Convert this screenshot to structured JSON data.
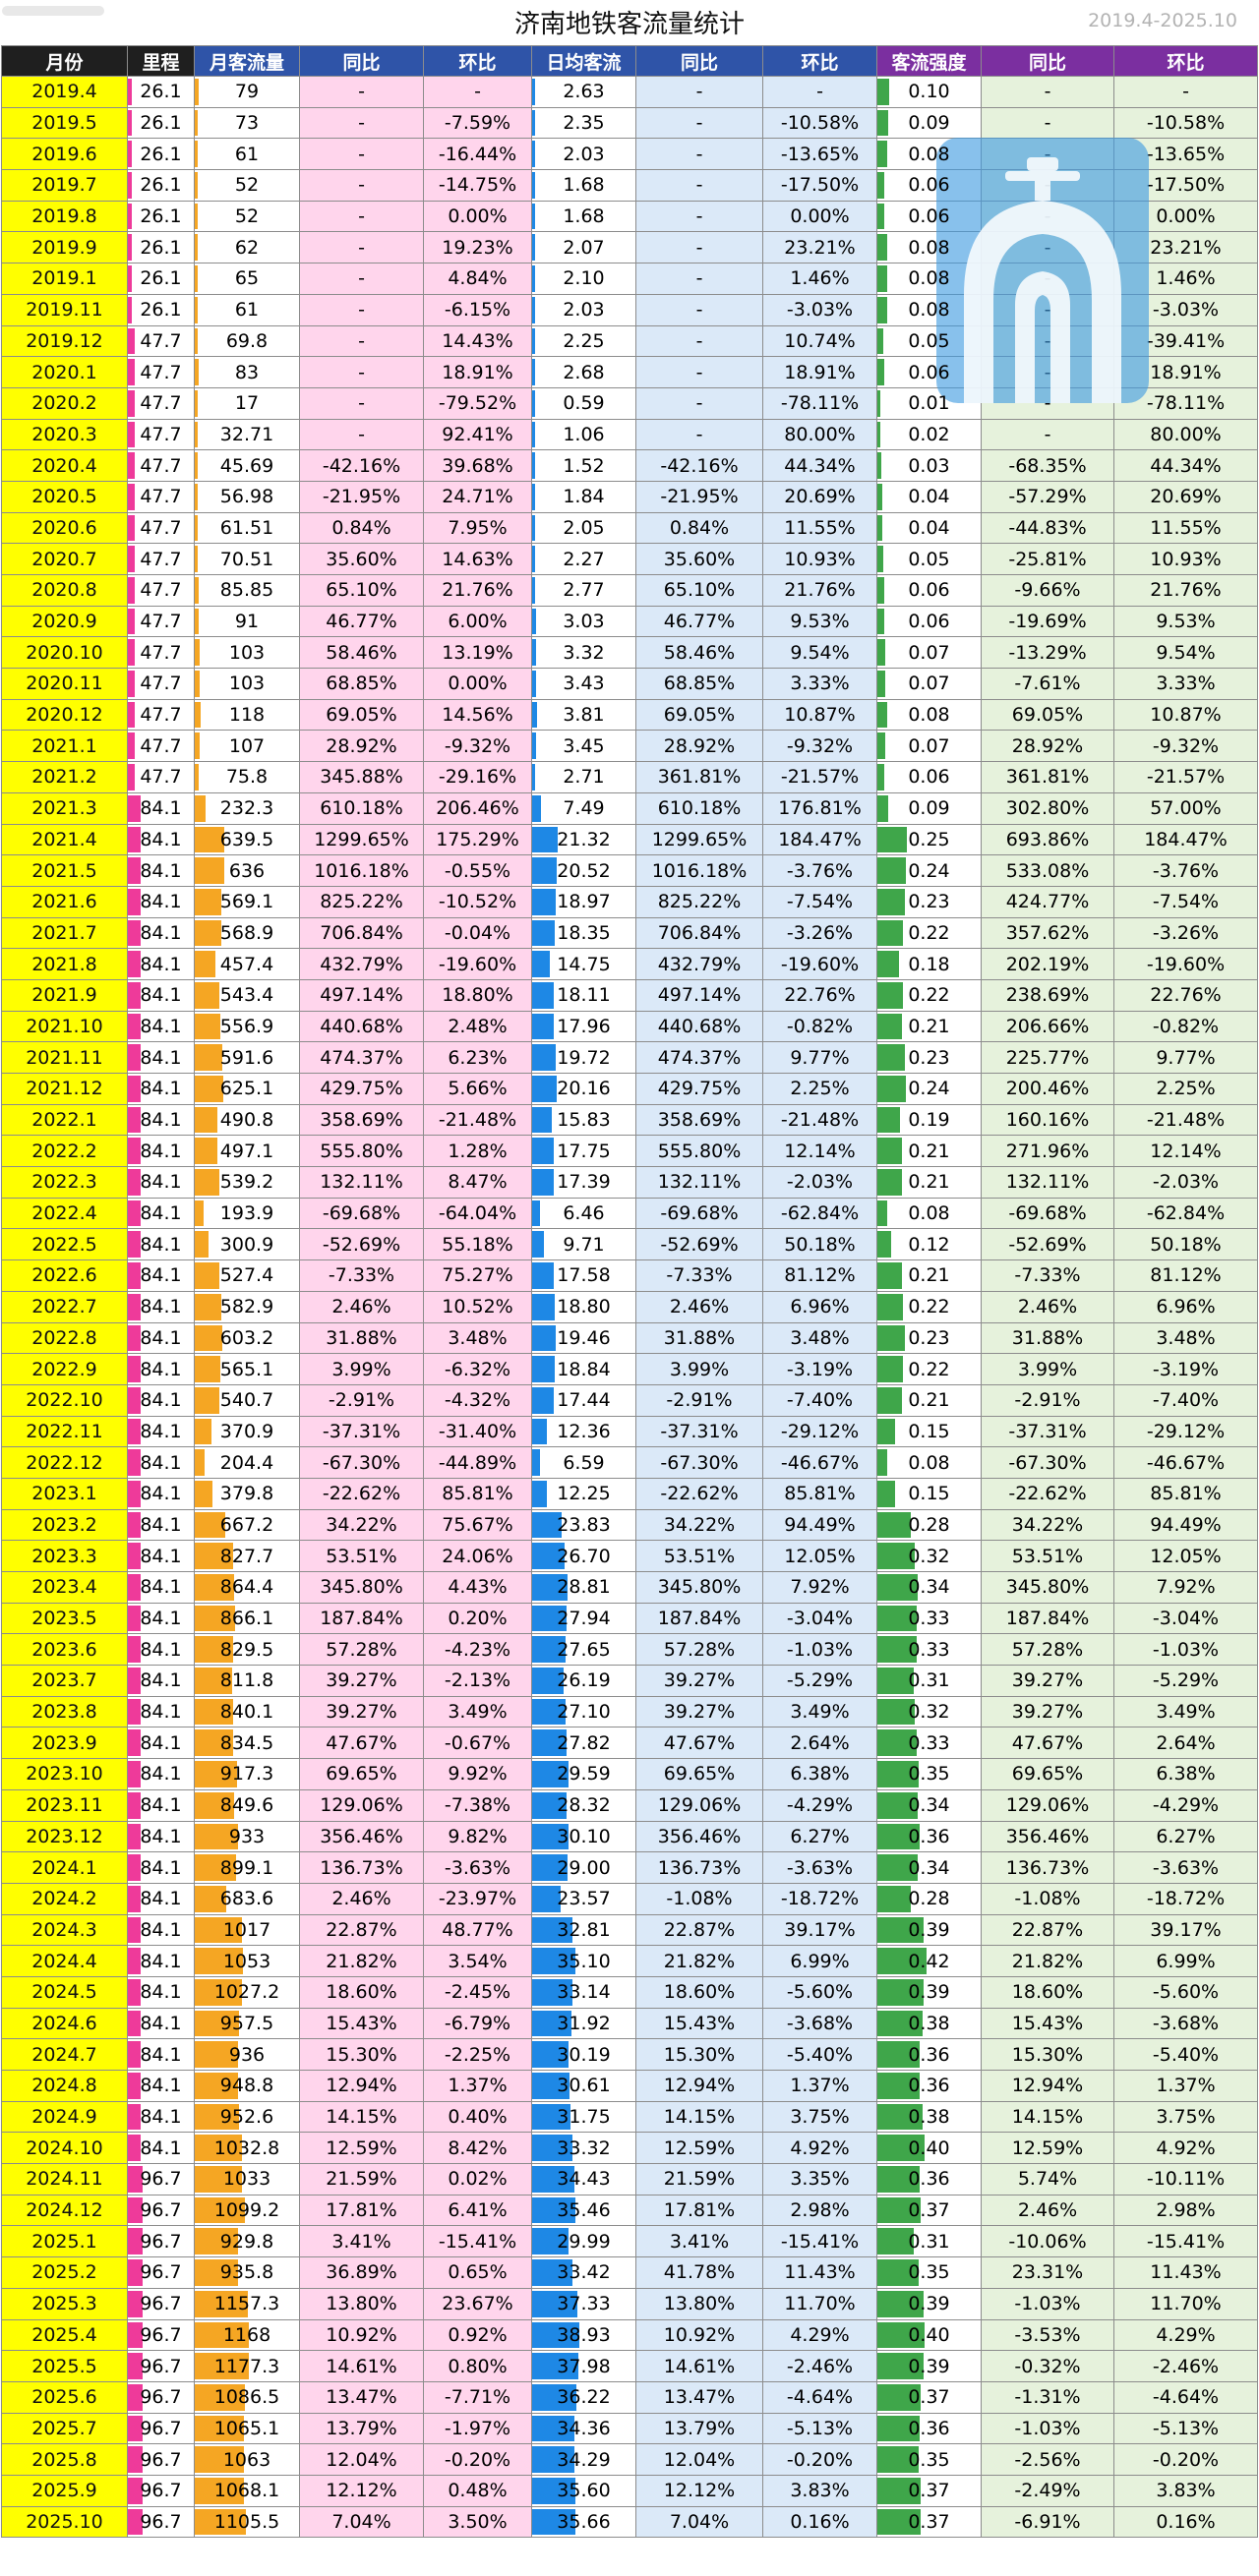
{
  "page": {
    "title": "济南地铁客流量统计",
    "range": "2019.4-2025.10"
  },
  "colors": {
    "yellow": "#ffff00",
    "pink": "#ee3a9a",
    "orange": "#f5a623",
    "blue": "#1e88e5",
    "green": "#3fa64a",
    "hdr_dark": "#1f1f1f",
    "hdr_blue": "#2f54a8",
    "hdr_purple": "#7b2fa0"
  },
  "headers": [
    "月份",
    "里程",
    "月客流量",
    "同比",
    "环比",
    "日均客流",
    "同比",
    "环比",
    "客流强度",
    "同比",
    "环比"
  ],
  "icons": {
    "logo": "jinan-metro-logo-icon",
    "watermark": "blurred-watermark"
  },
  "rows": [
    [
      "2019.4",
      "26.1",
      "79",
      "-",
      "-",
      "2.63",
      "-",
      "-",
      "0.10",
      "-",
      "-"
    ],
    [
      "2019.5",
      "26.1",
      "73",
      "-",
      "-7.59%",
      "2.35",
      "-",
      "-10.58%",
      "0.09",
      "-",
      "-10.58%"
    ],
    [
      "2019.6",
      "26.1",
      "61",
      "-",
      "-16.44%",
      "2.03",
      "-",
      "-13.65%",
      "0.08",
      "-",
      "-13.65%"
    ],
    [
      "2019.7",
      "26.1",
      "52",
      "-",
      "-14.75%",
      "1.68",
      "-",
      "-17.50%",
      "0.06",
      "-",
      "-17.50%"
    ],
    [
      "2019.8",
      "26.1",
      "52",
      "-",
      "0.00%",
      "1.68",
      "-",
      "0.00%",
      "0.06",
      "-",
      "0.00%"
    ],
    [
      "2019.9",
      "26.1",
      "62",
      "-",
      "19.23%",
      "2.07",
      "-",
      "23.21%",
      "0.08",
      "-",
      "23.21%"
    ],
    [
      "2019.1",
      "26.1",
      "65",
      "-",
      "4.84%",
      "2.10",
      "-",
      "1.46%",
      "0.08",
      "-",
      "1.46%"
    ],
    [
      "2019.11",
      "26.1",
      "61",
      "-",
      "-6.15%",
      "2.03",
      "-",
      "-3.03%",
      "0.08",
      "-",
      "-3.03%"
    ],
    [
      "2019.12",
      "47.7",
      "69.8",
      "-",
      "14.43%",
      "2.25",
      "-",
      "10.74%",
      "0.05",
      "-",
      "-39.41%"
    ],
    [
      "2020.1",
      "47.7",
      "83",
      "-",
      "18.91%",
      "2.68",
      "-",
      "18.91%",
      "0.06",
      "-",
      "18.91%"
    ],
    [
      "2020.2",
      "47.7",
      "17",
      "-",
      "-79.52%",
      "0.59",
      "-",
      "-78.11%",
      "0.01",
      "-",
      "-78.11%"
    ],
    [
      "2020.3",
      "47.7",
      "32.71",
      "-",
      "92.41%",
      "1.06",
      "-",
      "80.00%",
      "0.02",
      "-",
      "80.00%"
    ],
    [
      "2020.4",
      "47.7",
      "45.69",
      "-42.16%",
      "39.68%",
      "1.52",
      "-42.16%",
      "44.34%",
      "0.03",
      "-68.35%",
      "44.34%"
    ],
    [
      "2020.5",
      "47.7",
      "56.98",
      "-21.95%",
      "24.71%",
      "1.84",
      "-21.95%",
      "20.69%",
      "0.04",
      "-57.29%",
      "20.69%"
    ],
    [
      "2020.6",
      "47.7",
      "61.51",
      "0.84%",
      "7.95%",
      "2.05",
      "0.84%",
      "11.55%",
      "0.04",
      "-44.83%",
      "11.55%"
    ],
    [
      "2020.7",
      "47.7",
      "70.51",
      "35.60%",
      "14.63%",
      "2.27",
      "35.60%",
      "10.93%",
      "0.05",
      "-25.81%",
      "10.93%"
    ],
    [
      "2020.8",
      "47.7",
      "85.85",
      "65.10%",
      "21.76%",
      "2.77",
      "65.10%",
      "21.76%",
      "0.06",
      "-9.66%",
      "21.76%"
    ],
    [
      "2020.9",
      "47.7",
      "91",
      "46.77%",
      "6.00%",
      "3.03",
      "46.77%",
      "9.53%",
      "0.06",
      "-19.69%",
      "9.53%"
    ],
    [
      "2020.10",
      "47.7",
      "103",
      "58.46%",
      "13.19%",
      "3.32",
      "58.46%",
      "9.54%",
      "0.07",
      "-13.29%",
      "9.54%"
    ],
    [
      "2020.11",
      "47.7",
      "103",
      "68.85%",
      "0.00%",
      "3.43",
      "68.85%",
      "3.33%",
      "0.07",
      "-7.61%",
      "3.33%"
    ],
    [
      "2020.12",
      "47.7",
      "118",
      "69.05%",
      "14.56%",
      "3.81",
      "69.05%",
      "10.87%",
      "0.08",
      "69.05%",
      "10.87%"
    ],
    [
      "2021.1",
      "47.7",
      "107",
      "28.92%",
      "-9.32%",
      "3.45",
      "28.92%",
      "-9.32%",
      "0.07",
      "28.92%",
      "-9.32%"
    ],
    [
      "2021.2",
      "47.7",
      "75.8",
      "345.88%",
      "-29.16%",
      "2.71",
      "361.81%",
      "-21.57%",
      "0.06",
      "361.81%",
      "-21.57%"
    ],
    [
      "2021.3",
      "84.1",
      "232.3",
      "610.18%",
      "206.46%",
      "7.49",
      "610.18%",
      "176.81%",
      "0.09",
      "302.80%",
      "57.00%"
    ],
    [
      "2021.4",
      "84.1",
      "639.5",
      "1299.65%",
      "175.29%",
      "21.32",
      "1299.65%",
      "184.47%",
      "0.25",
      "693.86%",
      "184.47%"
    ],
    [
      "2021.5",
      "84.1",
      "636",
      "1016.18%",
      "-0.55%",
      "20.52",
      "1016.18%",
      "-3.76%",
      "0.24",
      "533.08%",
      "-3.76%"
    ],
    [
      "2021.6",
      "84.1",
      "569.1",
      "825.22%",
      "-10.52%",
      "18.97",
      "825.22%",
      "-7.54%",
      "0.23",
      "424.77%",
      "-7.54%"
    ],
    [
      "2021.7",
      "84.1",
      "568.9",
      "706.84%",
      "-0.04%",
      "18.35",
      "706.84%",
      "-3.26%",
      "0.22",
      "357.62%",
      "-3.26%"
    ],
    [
      "2021.8",
      "84.1",
      "457.4",
      "432.79%",
      "-19.60%",
      "14.75",
      "432.79%",
      "-19.60%",
      "0.18",
      "202.19%",
      "-19.60%"
    ],
    [
      "2021.9",
      "84.1",
      "543.4",
      "497.14%",
      "18.80%",
      "18.11",
      "497.14%",
      "22.76%",
      "0.22",
      "238.69%",
      "22.76%"
    ],
    [
      "2021.10",
      "84.1",
      "556.9",
      "440.68%",
      "2.48%",
      "17.96",
      "440.68%",
      "-0.82%",
      "0.21",
      "206.66%",
      "-0.82%"
    ],
    [
      "2021.11",
      "84.1",
      "591.6",
      "474.37%",
      "6.23%",
      "19.72",
      "474.37%",
      "9.77%",
      "0.23",
      "225.77%",
      "9.77%"
    ],
    [
      "2021.12",
      "84.1",
      "625.1",
      "429.75%",
      "5.66%",
      "20.16",
      "429.75%",
      "2.25%",
      "0.24",
      "200.46%",
      "2.25%"
    ],
    [
      "2022.1",
      "84.1",
      "490.8",
      "358.69%",
      "-21.48%",
      "15.83",
      "358.69%",
      "-21.48%",
      "0.19",
      "160.16%",
      "-21.48%"
    ],
    [
      "2022.2",
      "84.1",
      "497.1",
      "555.80%",
      "1.28%",
      "17.75",
      "555.80%",
      "12.14%",
      "0.21",
      "271.96%",
      "12.14%"
    ],
    [
      "2022.3",
      "84.1",
      "539.2",
      "132.11%",
      "8.47%",
      "17.39",
      "132.11%",
      "-2.03%",
      "0.21",
      "132.11%",
      "-2.03%"
    ],
    [
      "2022.4",
      "84.1",
      "193.9",
      "-69.68%",
      "-64.04%",
      "6.46",
      "-69.68%",
      "-62.84%",
      "0.08",
      "-69.68%",
      "-62.84%"
    ],
    [
      "2022.5",
      "84.1",
      "300.9",
      "-52.69%",
      "55.18%",
      "9.71",
      "-52.69%",
      "50.18%",
      "0.12",
      "-52.69%",
      "50.18%"
    ],
    [
      "2022.6",
      "84.1",
      "527.4",
      "-7.33%",
      "75.27%",
      "17.58",
      "-7.33%",
      "81.12%",
      "0.21",
      "-7.33%",
      "81.12%"
    ],
    [
      "2022.7",
      "84.1",
      "582.9",
      "2.46%",
      "10.52%",
      "18.80",
      "2.46%",
      "6.96%",
      "0.22",
      "2.46%",
      "6.96%"
    ],
    [
      "2022.8",
      "84.1",
      "603.2",
      "31.88%",
      "3.48%",
      "19.46",
      "31.88%",
      "3.48%",
      "0.23",
      "31.88%",
      "3.48%"
    ],
    [
      "2022.9",
      "84.1",
      "565.1",
      "3.99%",
      "-6.32%",
      "18.84",
      "3.99%",
      "-3.19%",
      "0.22",
      "3.99%",
      "-3.19%"
    ],
    [
      "2022.10",
      "84.1",
      "540.7",
      "-2.91%",
      "-4.32%",
      "17.44",
      "-2.91%",
      "-7.40%",
      "0.21",
      "-2.91%",
      "-7.40%"
    ],
    [
      "2022.11",
      "84.1",
      "370.9",
      "-37.31%",
      "-31.40%",
      "12.36",
      "-37.31%",
      "-29.12%",
      "0.15",
      "-37.31%",
      "-29.12%"
    ],
    [
      "2022.12",
      "84.1",
      "204.4",
      "-67.30%",
      "-44.89%",
      "6.59",
      "-67.30%",
      "-46.67%",
      "0.08",
      "-67.30%",
      "-46.67%"
    ],
    [
      "2023.1",
      "84.1",
      "379.8",
      "-22.62%",
      "85.81%",
      "12.25",
      "-22.62%",
      "85.81%",
      "0.15",
      "-22.62%",
      "85.81%"
    ],
    [
      "2023.2",
      "84.1",
      "667.2",
      "34.22%",
      "75.67%",
      "23.83",
      "34.22%",
      "94.49%",
      "0.28",
      "34.22%",
      "94.49%"
    ],
    [
      "2023.3",
      "84.1",
      "827.7",
      "53.51%",
      "24.06%",
      "26.70",
      "53.51%",
      "12.05%",
      "0.32",
      "53.51%",
      "12.05%"
    ],
    [
      "2023.4",
      "84.1",
      "864.4",
      "345.80%",
      "4.43%",
      "28.81",
      "345.80%",
      "7.92%",
      "0.34",
      "345.80%",
      "7.92%"
    ],
    [
      "2023.5",
      "84.1",
      "866.1",
      "187.84%",
      "0.20%",
      "27.94",
      "187.84%",
      "-3.04%",
      "0.33",
      "187.84%",
      "-3.04%"
    ],
    [
      "2023.6",
      "84.1",
      "829.5",
      "57.28%",
      "-4.23%",
      "27.65",
      "57.28%",
      "-1.03%",
      "0.33",
      "57.28%",
      "-1.03%"
    ],
    [
      "2023.7",
      "84.1",
      "811.8",
      "39.27%",
      "-2.13%",
      "26.19",
      "39.27%",
      "-5.29%",
      "0.31",
      "39.27%",
      "-5.29%"
    ],
    [
      "2023.8",
      "84.1",
      "840.1",
      "39.27%",
      "3.49%",
      "27.10",
      "39.27%",
      "3.49%",
      "0.32",
      "39.27%",
      "3.49%"
    ],
    [
      "2023.9",
      "84.1",
      "834.5",
      "47.67%",
      "-0.67%",
      "27.82",
      "47.67%",
      "2.64%",
      "0.33",
      "47.67%",
      "2.64%"
    ],
    [
      "2023.10",
      "84.1",
      "917.3",
      "69.65%",
      "9.92%",
      "29.59",
      "69.65%",
      "6.38%",
      "0.35",
      "69.65%",
      "6.38%"
    ],
    [
      "2023.11",
      "84.1",
      "849.6",
      "129.06%",
      "-7.38%",
      "28.32",
      "129.06%",
      "-4.29%",
      "0.34",
      "129.06%",
      "-4.29%"
    ],
    [
      "2023.12",
      "84.1",
      "933",
      "356.46%",
      "9.82%",
      "30.10",
      "356.46%",
      "6.27%",
      "0.36",
      "356.46%",
      "6.27%"
    ],
    [
      "2024.1",
      "84.1",
      "899.1",
      "136.73%",
      "-3.63%",
      "29.00",
      "136.73%",
      "-3.63%",
      "0.34",
      "136.73%",
      "-3.63%"
    ],
    [
      "2024.2",
      "84.1",
      "683.6",
      "2.46%",
      "-23.97%",
      "23.57",
      "-1.08%",
      "-18.72%",
      "0.28",
      "-1.08%",
      "-18.72%"
    ],
    [
      "2024.3",
      "84.1",
      "1017",
      "22.87%",
      "48.77%",
      "32.81",
      "22.87%",
      "39.17%",
      "0.39",
      "22.87%",
      "39.17%"
    ],
    [
      "2024.4",
      "84.1",
      "1053",
      "21.82%",
      "3.54%",
      "35.10",
      "21.82%",
      "6.99%",
      "0.42",
      "21.82%",
      "6.99%"
    ],
    [
      "2024.5",
      "84.1",
      "1027.2",
      "18.60%",
      "-2.45%",
      "33.14",
      "18.60%",
      "-5.60%",
      "0.39",
      "18.60%",
      "-5.60%"
    ],
    [
      "2024.6",
      "84.1",
      "957.5",
      "15.43%",
      "-6.79%",
      "31.92",
      "15.43%",
      "-3.68%",
      "0.38",
      "15.43%",
      "-3.68%"
    ],
    [
      "2024.7",
      "84.1",
      "936",
      "15.30%",
      "-2.25%",
      "30.19",
      "15.30%",
      "-5.40%",
      "0.36",
      "15.30%",
      "-5.40%"
    ],
    [
      "2024.8",
      "84.1",
      "948.8",
      "12.94%",
      "1.37%",
      "30.61",
      "12.94%",
      "1.37%",
      "0.36",
      "12.94%",
      "1.37%"
    ],
    [
      "2024.9",
      "84.1",
      "952.6",
      "14.15%",
      "0.40%",
      "31.75",
      "14.15%",
      "3.75%",
      "0.38",
      "14.15%",
      "3.75%"
    ],
    [
      "2024.10",
      "84.1",
      "1032.8",
      "12.59%",
      "8.42%",
      "33.32",
      "12.59%",
      "4.92%",
      "0.40",
      "12.59%",
      "4.92%"
    ],
    [
      "2024.11",
      "96.7",
      "1033",
      "21.59%",
      "0.02%",
      "34.43",
      "21.59%",
      "3.35%",
      "0.36",
      "5.74%",
      "-10.11%"
    ],
    [
      "2024.12",
      "96.7",
      "1099.2",
      "17.81%",
      "6.41%",
      "35.46",
      "17.81%",
      "2.98%",
      "0.37",
      "2.46%",
      "2.98%"
    ],
    [
      "2025.1",
      "96.7",
      "929.8",
      "3.41%",
      "-15.41%",
      "29.99",
      "3.41%",
      "-15.41%",
      "0.31",
      "-10.06%",
      "-15.41%"
    ],
    [
      "2025.2",
      "96.7",
      "935.8",
      "36.89%",
      "0.65%",
      "33.42",
      "41.78%",
      "11.43%",
      "0.35",
      "23.31%",
      "11.43%"
    ],
    [
      "2025.3",
      "96.7",
      "1157.3",
      "13.80%",
      "23.67%",
      "37.33",
      "13.80%",
      "11.70%",
      "0.39",
      "-1.03%",
      "11.70%"
    ],
    [
      "2025.4",
      "96.7",
      "1168",
      "10.92%",
      "0.92%",
      "38.93",
      "10.92%",
      "4.29%",
      "0.40",
      "-3.53%",
      "4.29%"
    ],
    [
      "2025.5",
      "96.7",
      "1177.3",
      "14.61%",
      "0.80%",
      "37.98",
      "14.61%",
      "-2.46%",
      "0.39",
      "-0.32%",
      "-2.46%"
    ],
    [
      "2025.6",
      "96.7",
      "1086.5",
      "13.47%",
      "-7.71%",
      "36.22",
      "13.47%",
      "-4.64%",
      "0.37",
      "-1.31%",
      "-4.64%"
    ],
    [
      "2025.7",
      "96.7",
      "1065.1",
      "13.79%",
      "-1.97%",
      "34.36",
      "13.79%",
      "-5.13%",
      "0.36",
      "-1.03%",
      "-5.13%"
    ],
    [
      "2025.8",
      "96.7",
      "1063",
      "12.04%",
      "-0.20%",
      "34.29",
      "12.04%",
      "-0.20%",
      "0.35",
      "-2.56%",
      "-0.20%"
    ],
    [
      "2025.9",
      "96.7",
      "1068.1",
      "12.12%",
      "0.48%",
      "35.60",
      "12.12%",
      "3.83%",
      "0.37",
      "-2.49%",
      "3.83%"
    ],
    [
      "2025.10",
      "96.7",
      "1105.5",
      "7.04%",
      "3.50%",
      "35.66",
      "7.04%",
      "0.16%",
      "0.37",
      "-6.91%",
      "0.16%"
    ]
  ]
}
